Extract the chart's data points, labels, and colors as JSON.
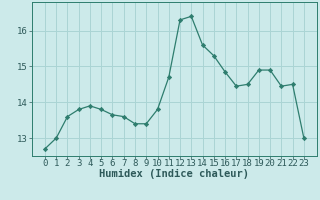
{
  "x": [
    0,
    1,
    2,
    3,
    4,
    5,
    6,
    7,
    8,
    9,
    10,
    11,
    12,
    13,
    14,
    15,
    16,
    17,
    18,
    19,
    20,
    21,
    22,
    23
  ],
  "y": [
    12.7,
    13.0,
    13.6,
    13.8,
    13.9,
    13.8,
    13.65,
    13.6,
    13.4,
    13.4,
    13.8,
    14.7,
    16.3,
    16.4,
    15.6,
    15.3,
    14.85,
    14.45,
    14.5,
    14.9,
    14.9,
    14.45,
    14.5,
    13.0
  ],
  "line_color": "#2e7d6e",
  "marker": "D",
  "marker_size": 2.2,
  "bg_color": "#cceaea",
  "grid_color": "#aad4d4",
  "axis_color": "#2e7d6e",
  "text_color": "#2e5a5a",
  "xlabel": "Humidex (Indice chaleur)",
  "ylim": [
    12.5,
    16.8
  ],
  "yticks": [
    13,
    14,
    15,
    16
  ],
  "xticks": [
    0,
    1,
    2,
    3,
    4,
    5,
    6,
    7,
    8,
    9,
    10,
    11,
    12,
    13,
    14,
    15,
    16,
    17,
    18,
    19,
    20,
    21,
    22,
    23
  ],
  "label_fontsize": 7.5,
  "tick_fontsize": 6.5
}
